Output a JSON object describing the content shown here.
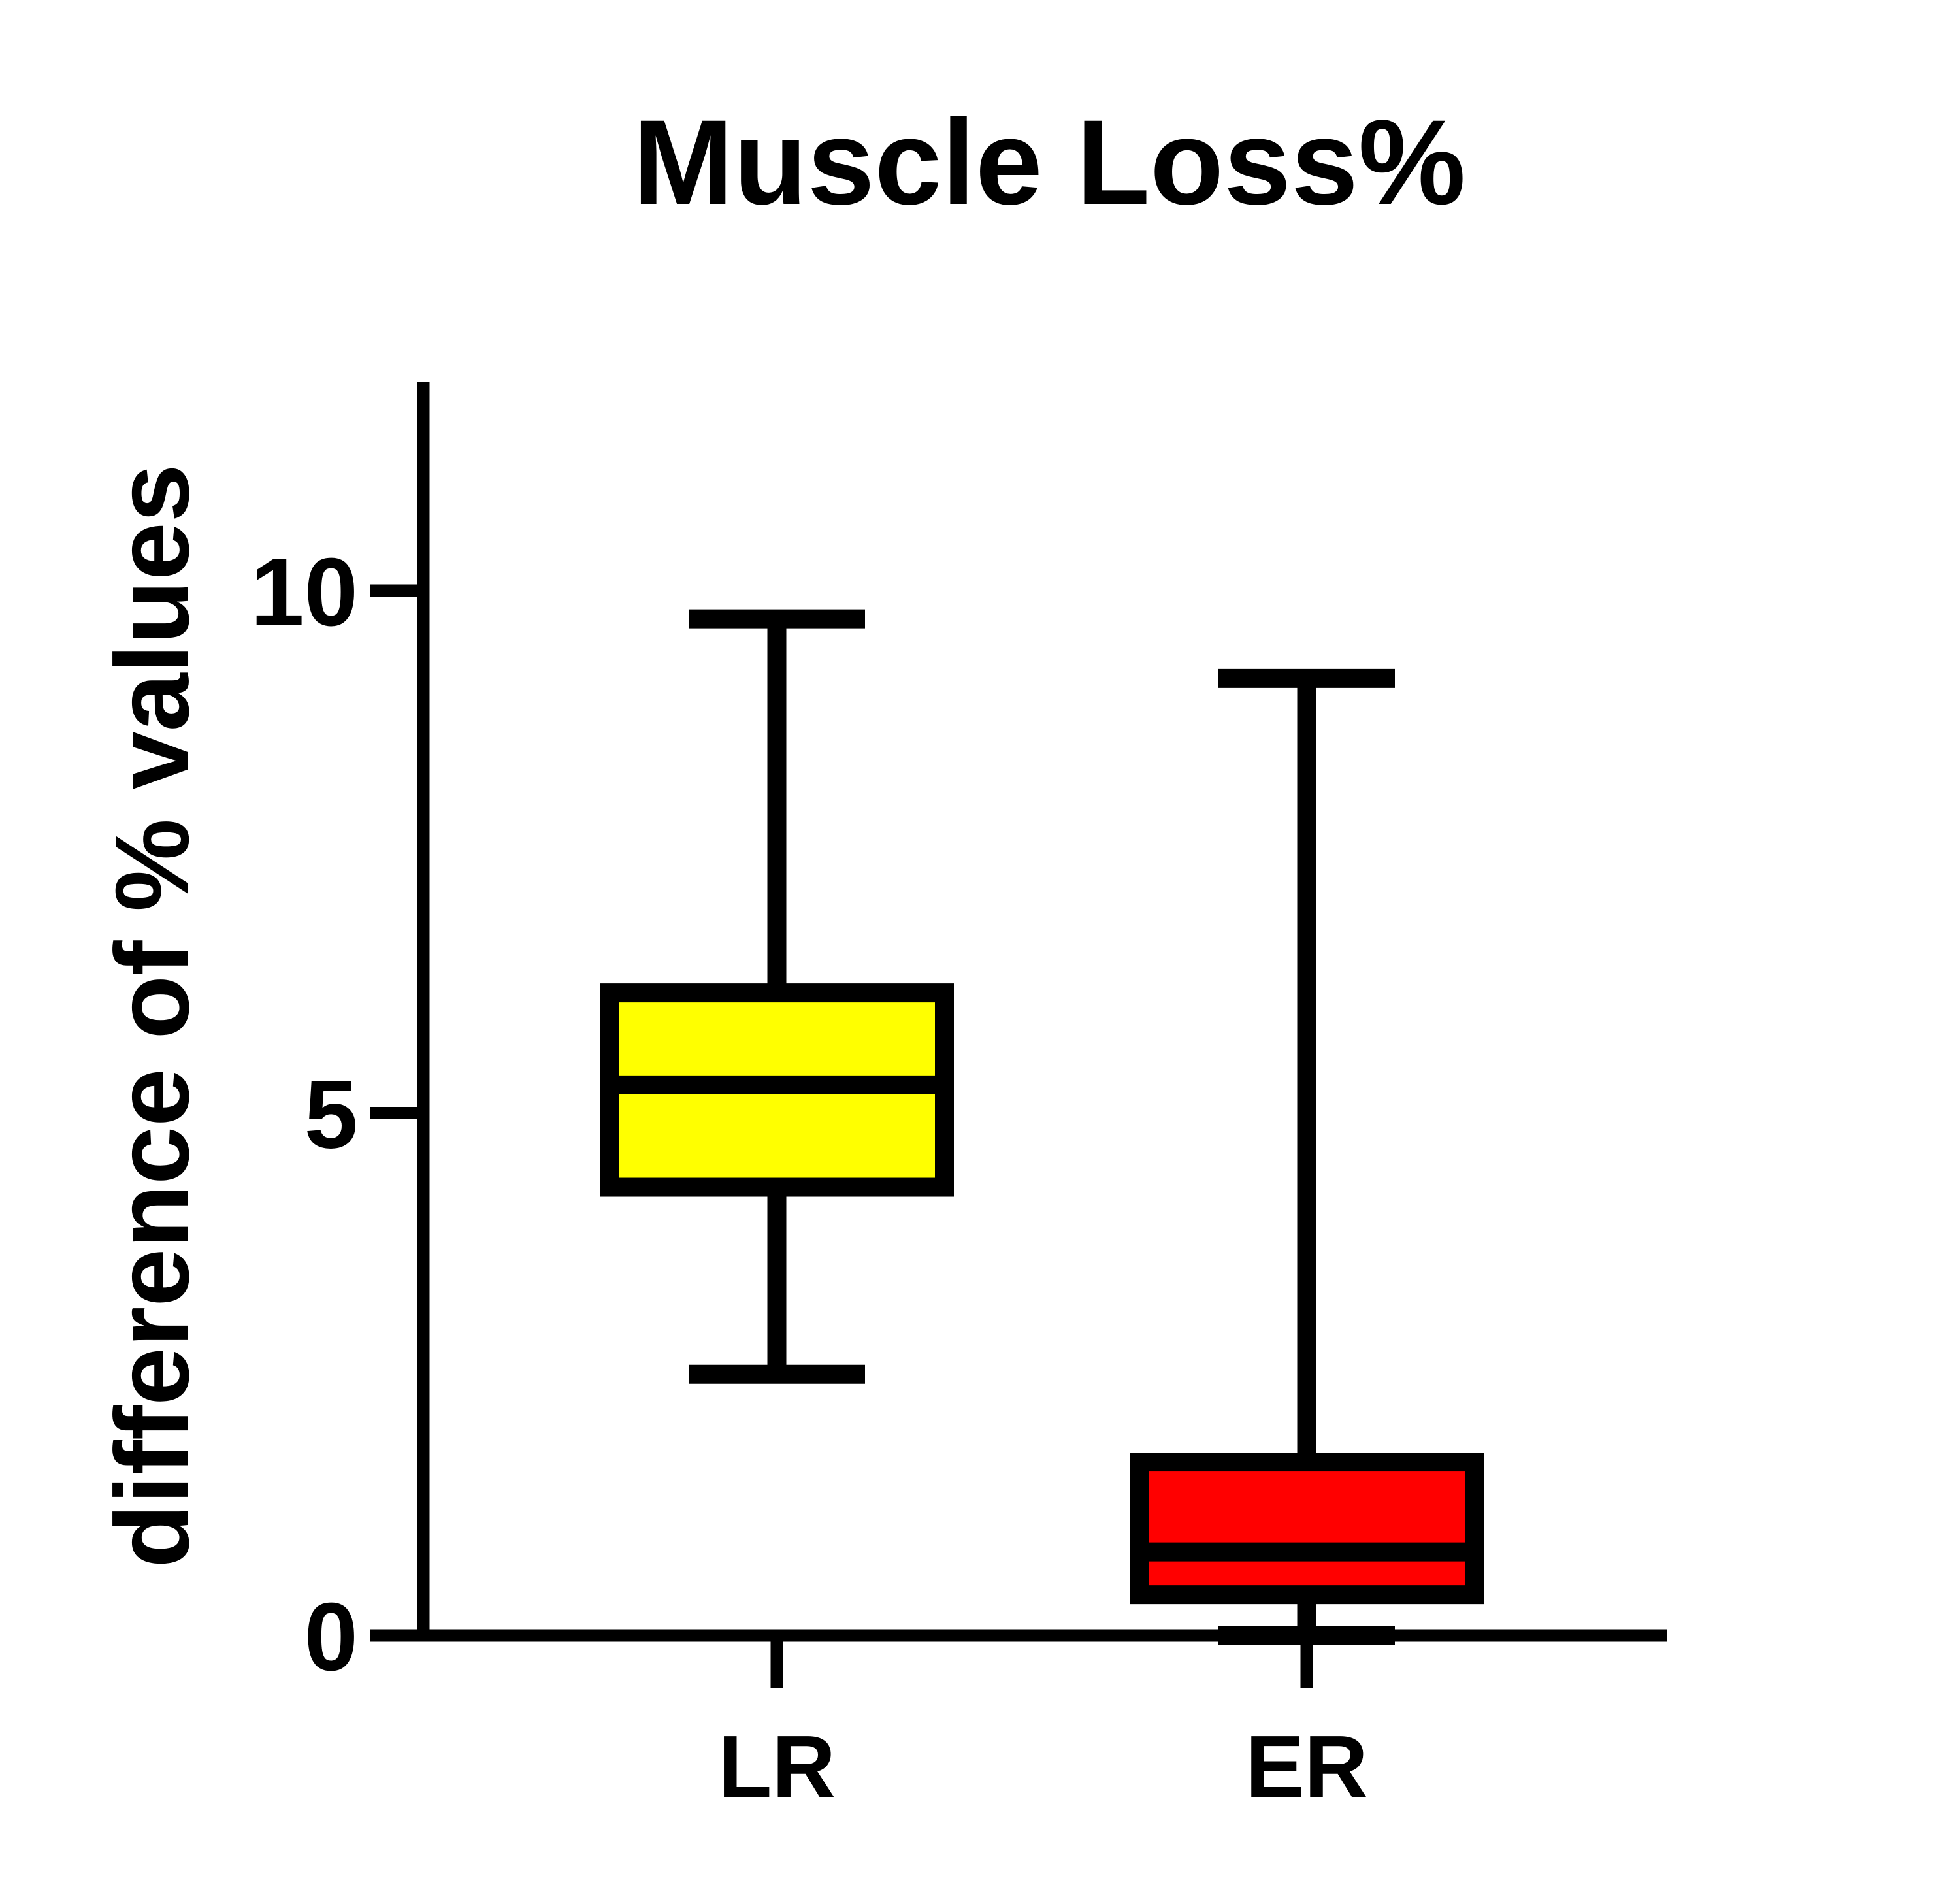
{
  "chart_data": {
    "type": "box",
    "title": "Muscle Loss%",
    "xlabel": "",
    "ylabel": "difference of % values",
    "ylim": [
      0,
      12
    ],
    "yticks": [
      0,
      5,
      10
    ],
    "ytick_labels": [
      "0",
      "5",
      "10"
    ],
    "grid": false,
    "legend": null,
    "categories": [
      "LR",
      "ER"
    ],
    "series": [
      {
        "name": "LR",
        "min": 2.5,
        "q1": 4.29,
        "median": 5.27,
        "q3": 6.15,
        "max": 9.73,
        "color": "#ffff00"
      },
      {
        "name": "ER",
        "min": 0.0,
        "q1": 0.39,
        "median": 0.8,
        "q3": 1.66,
        "max": 9.16,
        "color": "#ff0000"
      }
    ]
  }
}
